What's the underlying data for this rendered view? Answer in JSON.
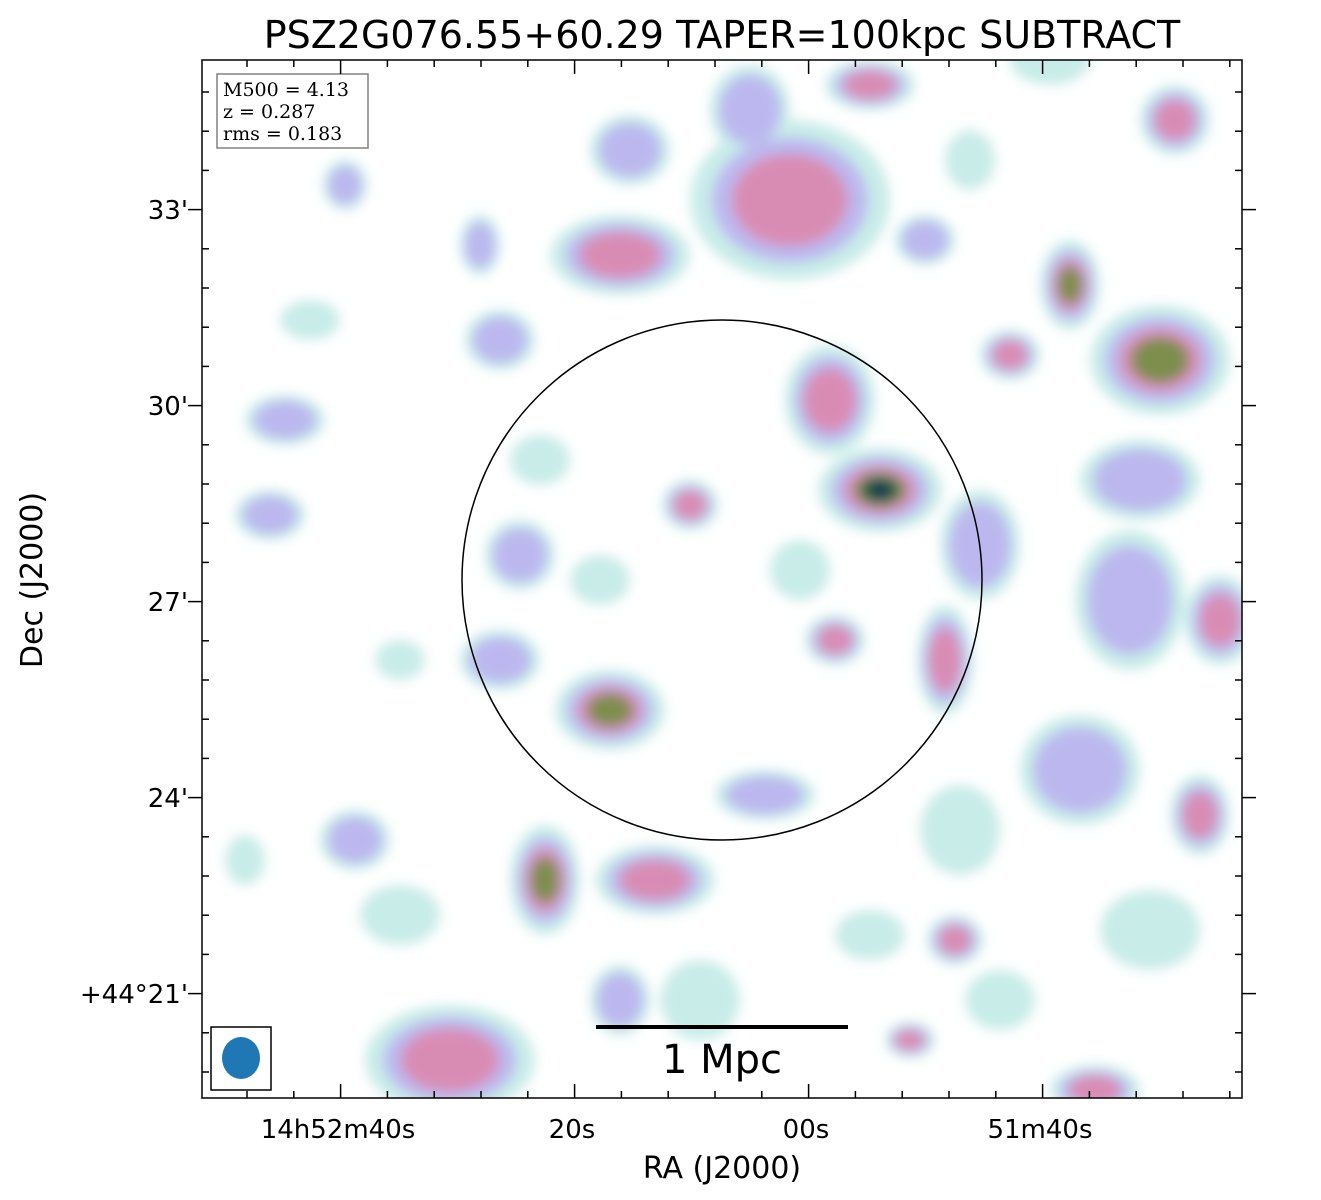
{
  "chart_data": {
    "type": "heatmap",
    "title": "PSZ2G076.55+60.29 TAPER=100kpc SUBTRACT",
    "xlabel": "RA (J2000)",
    "ylabel": "Dec (J2000)",
    "x_ticks": [
      "14h52m40s",
      "20s",
      "00s",
      "51m40s"
    ],
    "y_ticks": [
      "33'",
      "30'",
      "27'",
      "24'",
      "+44°21'"
    ],
    "info": {
      "m500": "M500 = 4.13",
      "z": "z = 0.287",
      "rms": "rms = 0.183"
    },
    "scalebar_label": "1 Mpc",
    "colors": {
      "level1": "#c8ece8",
      "level2": "#bcb8ef",
      "level3": "#d98cb3",
      "level4": "#7d8e4e",
      "level5": "#1e6a4a",
      "level6": "#13344f",
      "beam": "#1f77b4"
    }
  }
}
